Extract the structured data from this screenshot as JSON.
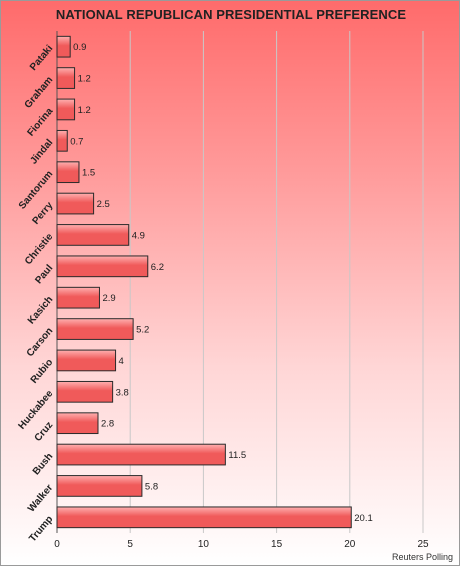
{
  "title": "NATIONAL REPUBLICAN PRESIDENTIAL PREFERENCE",
  "source": "Reuters Polling",
  "colors": {
    "bar_fill": "#f05a5a",
    "bar_highlight": "#ffb0b0",
    "bar_stroke": "#2a2a2a",
    "grid": "#c8c8c8"
  },
  "chart_data": {
    "type": "bar",
    "orientation": "horizontal",
    "title": "NATIONAL REPUBLICAN PRESIDENTIAL PREFERENCE",
    "xlabel": "",
    "ylabel": "",
    "categories": [
      "Pataki",
      "Graham",
      "Fiorina",
      "Jindal",
      "Santorum",
      "Perry",
      "Christie",
      "Paul",
      "Kasich",
      "Carson",
      "Rubio",
      "Huckabee",
      "Cruz",
      "Bush",
      "Walker",
      "Trump"
    ],
    "values": [
      0.9,
      1.2,
      1.2,
      0.7,
      1.5,
      2.5,
      4.9,
      6.2,
      2.9,
      5.2,
      4,
      3.8,
      2.8,
      11.5,
      5.8,
      20.1
    ],
    "value_labels": [
      "0.9",
      "1.2",
      "1.2",
      "0.7",
      "1.5",
      "2.5",
      "4.9",
      "6.2",
      "2.9",
      "5.2",
      "4",
      "3.8",
      "2.8",
      "11.5",
      "5.8",
      "20.1"
    ],
    "xlim": [
      0,
      25
    ],
    "x_ticks": [
      0,
      5,
      10,
      15,
      20,
      25
    ],
    "x_tick_labels": [
      "0",
      "5",
      "10",
      "15",
      "20",
      "25"
    ],
    "grid": true,
    "legend": "none"
  }
}
